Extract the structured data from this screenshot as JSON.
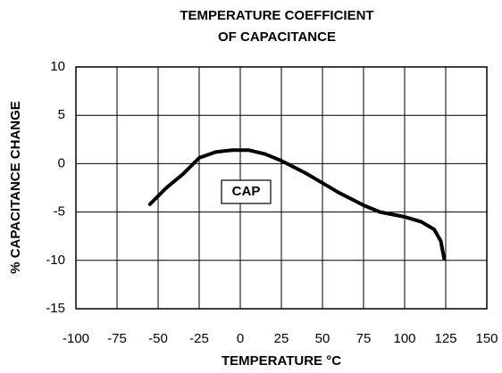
{
  "chart_data": {
    "type": "line",
    "title": [
      "TEMPERATURE COEFFICIENT",
      "OF CAPACITANCE"
    ],
    "xlabel": "TEMPERATURE °C",
    "ylabel": "% CAPACITANCE CHANGE",
    "annotation": "CAP",
    "x": [
      -55,
      -45,
      -35,
      -25,
      -15,
      -5,
      5,
      15,
      25,
      40,
      50,
      60,
      75,
      85,
      100,
      110,
      118,
      122,
      124
    ],
    "series": [
      {
        "name": "CAP",
        "color": "#000000",
        "values": [
          -4.2,
          -2.5,
          -1.1,
          0.6,
          1.2,
          1.4,
          1.4,
          1.0,
          0.3,
          -1.0,
          -2.0,
          -3.0,
          -4.3,
          -5.0,
          -5.5,
          -6.0,
          -6.8,
          -8.0,
          -9.8
        ]
      }
    ],
    "xlim": [
      -100,
      150
    ],
    "xticks": [
      -100,
      -75,
      -50,
      -25,
      0,
      25,
      50,
      75,
      100,
      125,
      150
    ],
    "ylim": [
      -15,
      10
    ],
    "yticks": [
      -15,
      -10,
      -5,
      0,
      5,
      10
    ],
    "grid": true
  }
}
